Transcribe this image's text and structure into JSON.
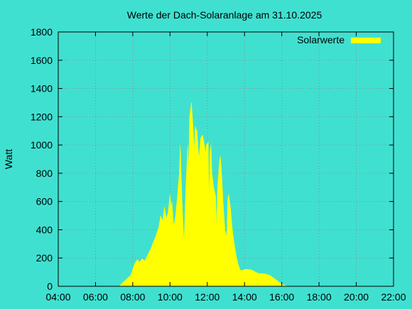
{
  "chart_data": {
    "type": "area",
    "title": "Werte der Dach-Solaranlage am 31.10.2025",
    "xlabel": "",
    "ylabel": "Watt",
    "x_unit": "time of day (hours)",
    "xlim": [
      4,
      22
    ],
    "ylim": [
      0,
      1800
    ],
    "x_tick_labels": [
      "04:00",
      "06:00",
      "08:00",
      "10:00",
      "12:00",
      "14:00",
      "16:00",
      "18:00",
      "20:00",
      "22:00"
    ],
    "x_tick_values": [
      4,
      6,
      8,
      10,
      12,
      14,
      16,
      18,
      20,
      22
    ],
    "y_ticks": [
      0,
      200,
      400,
      600,
      800,
      1000,
      1200,
      1400,
      1600,
      1800
    ],
    "grid": true,
    "legend_position": "top-right",
    "series": [
      {
        "name": "Solarwerte",
        "color": "#ffff00",
        "x": [
          7.33,
          7.5,
          7.7,
          7.9,
          8.1,
          8.25,
          8.35,
          8.5,
          8.65,
          8.8,
          8.95,
          9.1,
          9.25,
          9.4,
          9.5,
          9.6,
          9.7,
          9.8,
          9.9,
          10.0,
          10.05,
          10.1,
          10.2,
          10.3,
          10.4,
          10.5,
          10.55,
          10.65,
          10.75,
          10.85,
          10.95,
          11.0,
          11.05,
          11.15,
          11.25,
          11.3,
          11.35,
          11.45,
          11.55,
          11.65,
          11.75,
          11.85,
          11.9,
          11.95,
          12.05,
          12.1,
          12.15,
          12.2,
          12.25,
          12.35,
          12.45,
          12.5,
          12.55,
          12.65,
          12.7,
          12.75,
          12.85,
          12.95,
          13.05,
          13.1,
          13.15,
          13.25,
          13.35,
          13.45,
          13.55,
          13.65,
          13.75,
          13.85,
          14.0,
          14.2,
          14.4,
          14.6,
          14.8,
          15.0,
          15.2,
          15.4,
          15.6,
          15.8,
          16.0,
          16.2,
          16.35
        ],
        "values": [
          10,
          30,
          55,
          80,
          160,
          190,
          170,
          195,
          180,
          220,
          260,
          310,
          360,
          420,
          500,
          460,
          560,
          480,
          520,
          650,
          560,
          600,
          420,
          500,
          640,
          800,
          1000,
          600,
          300,
          700,
          1000,
          820,
          1200,
          1300,
          1100,
          950,
          1130,
          1100,
          900,
          1050,
          1070,
          1000,
          940,
          1000,
          1020,
          600,
          950,
          1000,
          800,
          700,
          640,
          400,
          700,
          880,
          920,
          850,
          600,
          400,
          350,
          620,
          650,
          550,
          400,
          300,
          220,
          160,
          120,
          110,
          120,
          120,
          115,
          100,
          90,
          90,
          85,
          75,
          55,
          35,
          15,
          5,
          0
        ]
      }
    ]
  }
}
